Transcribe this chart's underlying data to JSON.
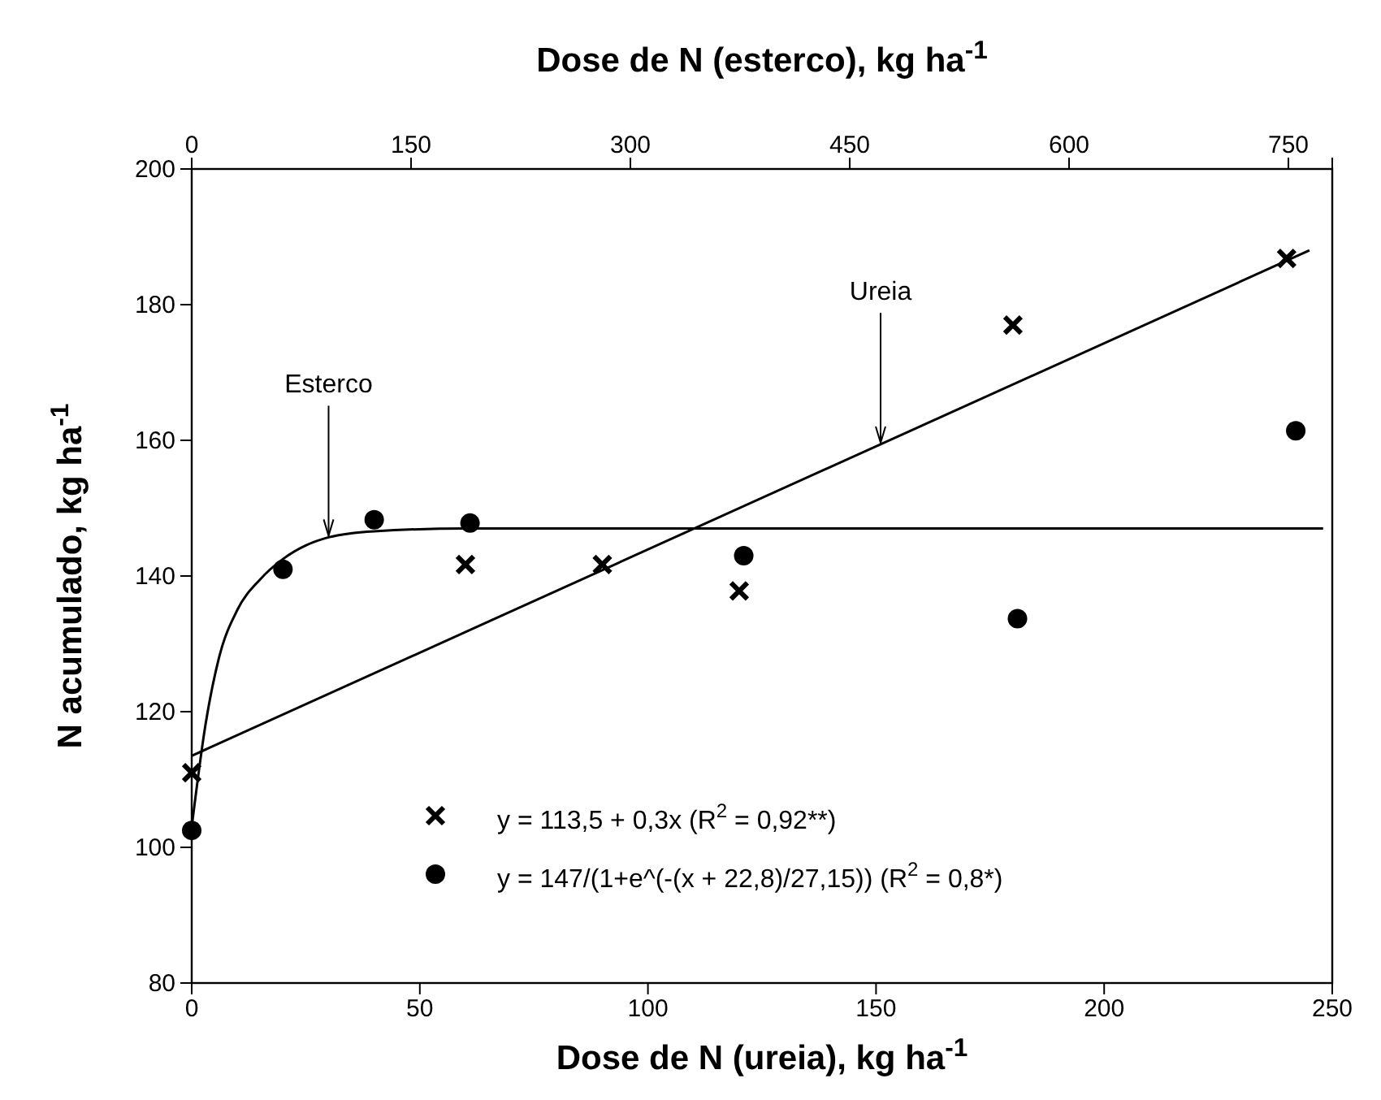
{
  "chart_data": {
    "type": "scatter",
    "xlabel": "Dose de N (ureia), kg ha$^{-1}$",
    "ylabel": "N acumulado, kg ha$^{-1}$",
    "x2label": "Dose de N (esterco), kg ha$^{-1}$",
    "xlim": [
      0,
      250
    ],
    "xticks": [
      0,
      50,
      100,
      150,
      200,
      250
    ],
    "ylim": [
      80,
      200
    ],
    "yticks": [
      80,
      100,
      120,
      140,
      160,
      180,
      200
    ],
    "x2lim": [
      0,
      780
    ],
    "x2ticks": [
      0,
      150,
      300,
      450,
      600,
      750
    ],
    "grid": false,
    "legend": "bottom",
    "series": [
      {
        "name": "y = 113,5 + 0,3x (R$^{2}$ = 0,92**)",
        "marker": "cross",
        "color": "#000000",
        "x": [
          0,
          60,
          90,
          120,
          180,
          240
        ],
        "values": [
          111,
          141.7,
          141.7,
          137.8,
          177,
          186.8
        ]
      },
      {
        "name": "y = 147/(1+e^(-(x + 22,8)/27,15)) (R$^{2}$ = 0,8*)",
        "marker": "circle",
        "color": "#000000",
        "x": [
          0,
          20,
          40,
          61,
          121,
          181,
          242
        ],
        "values": [
          102.5,
          141,
          148.3,
          147.8,
          143,
          133.7,
          161.4
        ]
      },
      {
        "type": "line",
        "marker": "none",
        "color": "#000000",
        "x": [
          0,
          245
        ],
        "values": [
          113.5,
          188
        ]
      },
      {
        "type": "line",
        "marker": "none",
        "color": "#000000",
        "x": [
          0,
          3,
          6,
          10,
          15,
          20,
          25,
          30,
          40,
          60,
          100,
          248
        ],
        "values": [
          103,
          118,
          128,
          135,
          139.5,
          142.5,
          144.5,
          145.7,
          146.6,
          147,
          147,
          147
        ]
      }
    ],
    "annotations": [
      {
        "text": "Esterco",
        "x": 30,
        "y": 145.7
      },
      {
        "text": "Ureia",
        "x": 151,
        "y": 159.4
      }
    ]
  }
}
